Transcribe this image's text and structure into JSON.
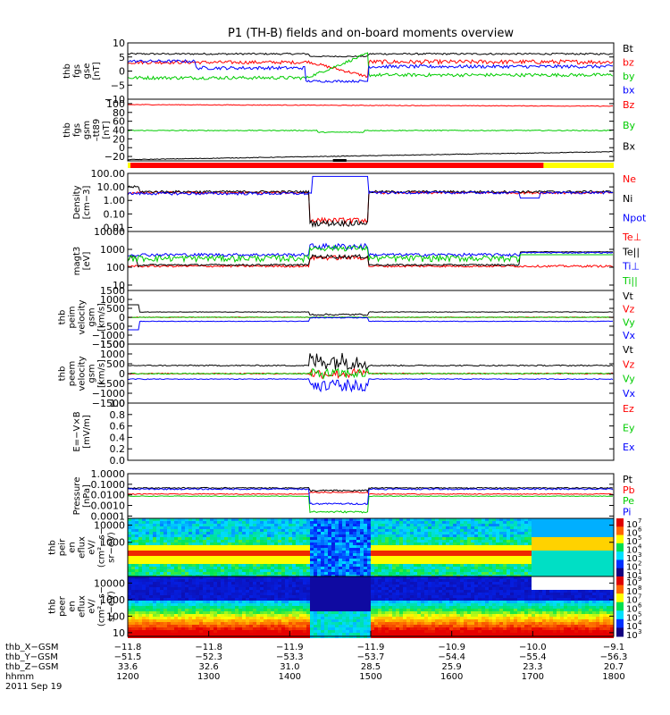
{
  "title": "P1 (TH-B) fields and on-board moments overview",
  "colors": {
    "black": "#000000",
    "red": "#ff0000",
    "green": "#00cc00",
    "blue": "#0000ff",
    "yellow": "#ffff00",
    "frame": "#000000"
  },
  "chart_data": [
    {
      "type": "line",
      "id": "fgs_gse",
      "ylabel": [
        "thb",
        "fgs",
        "gse",
        "[nT]"
      ],
      "yticks": [
        "10",
        "5",
        "0",
        "−5",
        "−10"
      ],
      "ytick_values": [
        10,
        5,
        0,
        -5,
        -10
      ],
      "ylim": [
        -10,
        10
      ],
      "legend": [
        {
          "label": "Bt",
          "color": "#000000"
        },
        {
          "label": "bz",
          "color": "#ff0000"
        },
        {
          "label": "by",
          "color": "#00cc00"
        },
        {
          "label": "bx",
          "color": "#0000ff"
        }
      ]
    },
    {
      "type": "line",
      "id": "fgs_gsm",
      "ylabel": [
        "thb",
        "fgs",
        "gsm",
        "–tt89"
      ],
      "ylabel2": "[nT]",
      "yticks": [
        "100",
        "80",
        "60",
        "40",
        "20",
        "0",
        "−20"
      ],
      "ytick_values": [
        100,
        80,
        60,
        40,
        20,
        0,
        -20
      ],
      "ylim": [
        -30,
        110
      ],
      "legend": [
        {
          "label": "Bz",
          "color": "#ff0000"
        },
        {
          "label": "By",
          "color": "#00cc00"
        },
        {
          "label": "Bx",
          "color": "#000000"
        }
      ]
    },
    {
      "type": "bar",
      "id": "mode_bar",
      "segments": [
        {
          "from_hhmm": "1200",
          "to_hhmm": "1202",
          "color": "#ffff00"
        },
        {
          "from_hhmm": "1202",
          "to_hhmm": "1708",
          "color": "#ff0000"
        },
        {
          "from_hhmm": "1708",
          "to_hhmm": "1800",
          "color": "#ffff00"
        }
      ],
      "burst": [
        {
          "from_hhmm": "1432",
          "to_hhmm": "1442",
          "color": "#000000"
        }
      ]
    },
    {
      "type": "line",
      "id": "density",
      "log": true,
      "ylabel": [
        "Density",
        "[cm−3]"
      ],
      "yticks": [
        "100.00",
        "10.00",
        "1.00",
        "0.10",
        "0.01"
      ],
      "ytick_values": [
        100,
        10,
        1,
        0.1,
        0.01
      ],
      "ylim": [
        0.005,
        100
      ],
      "legend": [
        {
          "label": "Ne",
          "color": "#ff0000"
        },
        {
          "label": "Ni",
          "color": "#000000"
        },
        {
          "label": "Npot",
          "color": "#0000ff"
        }
      ]
    },
    {
      "type": "line",
      "id": "temp",
      "log": true,
      "ylabel": [
        "magt3",
        "[eV]"
      ],
      "yticks": [
        "10000",
        "1000",
        "100",
        "10"
      ],
      "ytick_values": [
        10000,
        1000,
        100,
        10
      ],
      "ylim": [
        5,
        10000
      ],
      "legend": [
        {
          "label": "Te⊥",
          "color": "#ff0000"
        },
        {
          "label": "Te||",
          "color": "#000000"
        },
        {
          "label": "Ti⊥",
          "color": "#0000ff"
        },
        {
          "label": "Ti||",
          "color": "#00cc00"
        }
      ]
    },
    {
      "type": "line",
      "id": "peim_vel",
      "ylabel": [
        "thb",
        "peim",
        "velocity",
        "gsm",
        "[km/s]"
      ],
      "yticks": [
        "1500",
        "1000",
        "500",
        "0",
        "−500",
        "−1000",
        "−1500"
      ],
      "ytick_values": [
        1500,
        1000,
        500,
        0,
        -500,
        -1000,
        -1500
      ],
      "ylim": [
        -1500,
        1500
      ],
      "legend": [
        {
          "label": "Vt",
          "color": "#000000"
        },
        {
          "label": "Vz",
          "color": "#ff0000"
        },
        {
          "label": "Vy",
          "color": "#00cc00"
        },
        {
          "label": "Vx",
          "color": "#0000ff"
        }
      ]
    },
    {
      "type": "line",
      "id": "peem_vel",
      "ylabel": [
        "thb",
        "peem",
        "velocity",
        "gsm",
        "[km/s]"
      ],
      "yticks": [
        "1500",
        "1000",
        "500",
        "0",
        "−500",
        "−1000",
        "−1500"
      ],
      "ytick_values": [
        1500,
        1000,
        500,
        0,
        -500,
        -1000,
        -1500
      ],
      "ylim": [
        -1500,
        1500
      ],
      "legend": [
        {
          "label": "Vt",
          "color": "#000000"
        },
        {
          "label": "Vz",
          "color": "#ff0000"
        },
        {
          "label": "Vy",
          "color": "#00cc00"
        },
        {
          "label": "Vx",
          "color": "#0000ff"
        }
      ]
    },
    {
      "type": "line",
      "id": "efield",
      "ylabel": [
        "E=−V×B",
        "[mV/m]"
      ],
      "yticks": [
        "1.0",
        "0.8",
        "0.6",
        "0.4",
        "0.2",
        "0.0"
      ],
      "ytick_values": [
        1,
        0.8,
        0.6,
        0.4,
        0.2,
        0
      ],
      "ylim": [
        0,
        1
      ],
      "legend": [
        {
          "label": "Ez",
          "color": "#ff0000"
        },
        {
          "label": "Ey",
          "color": "#00cc00"
        },
        {
          "label": "Ex",
          "color": "#0000ff"
        }
      ]
    },
    {
      "type": "line",
      "id": "pressure",
      "log": true,
      "ylabel": [
        "Pressure",
        "[nPa]"
      ],
      "yticks": [
        "1.0000",
        "0.1000",
        "0.0100",
        "0.0010",
        "0.0001"
      ],
      "ytick_values": [
        1,
        0.1,
        0.01,
        0.001,
        0.0001
      ],
      "ylim": [
        6e-05,
        1
      ],
      "legend": [
        {
          "label": "Pt",
          "color": "#000000"
        },
        {
          "label": "Pb",
          "color": "#ff0000"
        },
        {
          "label": "Pe",
          "color": "#00cc00"
        },
        {
          "label": "Pi",
          "color": "#0000ff"
        }
      ]
    },
    {
      "type": "heatmap",
      "id": "peir_spec",
      "log": true,
      "ylabel": [
        "thb",
        "peir",
        "en",
        "eflux",
        "eV/",
        "(cm²−s−",
        "sr−eV)"
      ],
      "yticks": [
        "10000",
        "1000"
      ],
      "ytick_values": [
        10000,
        1000
      ],
      "ylim": [
        10,
        25000
      ],
      "colorbar": {
        "labels": [
          "10",
          "10",
          "10",
          "10",
          "10",
          "10",
          "10"
        ],
        "exponents": [
          "7",
          "6",
          "5",
          "4",
          "3",
          "2",
          "1"
        ]
      }
    },
    {
      "type": "heatmap",
      "id": "peer_spec",
      "log": true,
      "ylabel": [
        "thb",
        "peer",
        "en",
        "eflux",
        "eV/",
        "(cm²−s−",
        "sr−eV)"
      ],
      "yticks": [
        "10000",
        "1000",
        "100",
        "10"
      ],
      "ytick_values": [
        10000,
        1000,
        100,
        10
      ],
      "ylim": [
        6,
        25000
      ],
      "colorbar": {
        "labels": [
          "10",
          "10",
          "10",
          "10",
          "10",
          "10",
          "10"
        ],
        "exponents": [
          "9",
          "8",
          "7",
          "6",
          "5",
          "4",
          "3"
        ]
      }
    }
  ],
  "ephemeris": {
    "rows": [
      {
        "label": "thb_X−GSM",
        "values": [
          "−11.8",
          "−11.8",
          "−11.9",
          "−11.9",
          "−10.9",
          "−10.0",
          "−9.1"
        ]
      },
      {
        "label": "thb_Y−GSM",
        "values": [
          "−51.5",
          "−52.3",
          "−53.3",
          "−53.7",
          "−54.4",
          "−55.4",
          "−56.3"
        ]
      },
      {
        "label": "thb_Z−GSM",
        "values": [
          "33.6",
          "32.6",
          "31.0",
          "28.5",
          "25.9",
          "23.3",
          "20.7"
        ]
      },
      {
        "label": "hhmm",
        "values": [
          "1200",
          "1300",
          "1400",
          "1500",
          "1600",
          "1700",
          "1800"
        ]
      }
    ],
    "date": "2011 Sep 19"
  }
}
